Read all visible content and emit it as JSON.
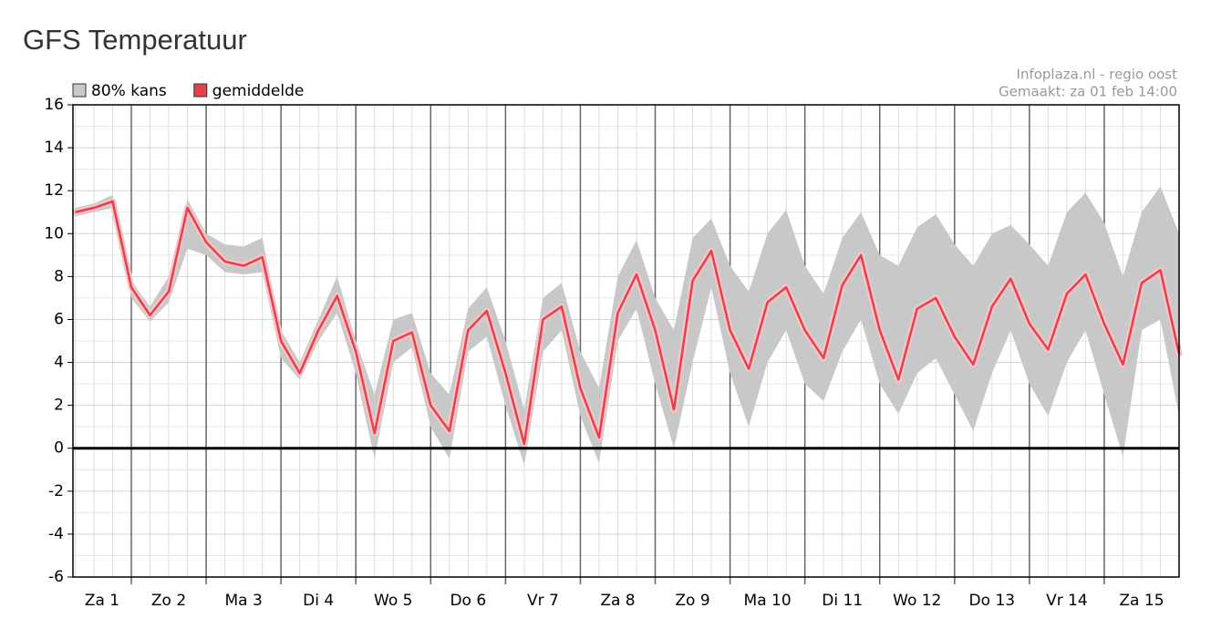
{
  "chart_data": {
    "type": "line",
    "title": "GFS Temperatuur",
    "source": "Infoplaza.nl - regio oost",
    "made": "Gemaakt: za 01 feb 14:00",
    "categories": [
      "Za 1",
      "Zo 2",
      "Ma 3",
      "Di 4",
      "Wo 5",
      "Do 6",
      "Vr 7",
      "Za 8",
      "Zo 9",
      "Ma 10",
      "Di 11",
      "Wo 12",
      "Do 13",
      "Vr 14",
      "Za 15"
    ],
    "x": [
      0.25,
      0.5,
      0.75,
      1,
      1.25,
      1.5,
      1.75,
      2,
      2.25,
      2.5,
      2.75,
      3,
      3.25,
      3.5,
      3.75,
      4,
      4.25,
      4.5,
      4.75,
      5,
      5.25,
      5.5,
      5.75,
      6,
      6.25,
      6.5,
      6.75,
      7,
      7.25,
      7.5,
      7.75,
      8,
      8.25,
      8.5,
      8.75,
      9,
      9.25,
      9.5,
      9.75,
      10,
      10.25,
      10.5,
      10.75,
      11,
      11.25,
      11.5,
      11.75,
      12,
      12.25,
      12.5,
      12.75,
      13,
      13.25,
      13.5,
      13.75,
      14,
      14.25,
      14.5,
      14.75,
      15
    ],
    "xlim": [
      0.22,
      15
    ],
    "ylim": [
      -6,
      16
    ],
    "yticks": [
      -6,
      -4,
      -2,
      0,
      2,
      4,
      6,
      8,
      10,
      12,
      14,
      16
    ],
    "grid": true,
    "zero_line": true,
    "legend": "top-left",
    "series": [
      {
        "name": "80% kans",
        "color": "#c8c8c8",
        "high": [
          11.2,
          11.4,
          11.8,
          7.8,
          6.6,
          8,
          11.6,
          10,
          9.5,
          9.4,
          9.8,
          5.5,
          4,
          6,
          8,
          5,
          2.5,
          6,
          6.3,
          3.5,
          2.5,
          6.5,
          7.5,
          5,
          1.8,
          7,
          7.7,
          4.5,
          2.8,
          8,
          9.7,
          7,
          5.5,
          9.8,
          10.7,
          8.5,
          7.3,
          10,
          11.1,
          8.5,
          7.2,
          9.8,
          11,
          9,
          8.5,
          10.3,
          10.9,
          9.5,
          8.5,
          10,
          10.4,
          9.5,
          8.5,
          11,
          11.9,
          10.5,
          8,
          11,
          12.2,
          10
        ],
        "low": [
          10.8,
          11.0,
          11.2,
          7.0,
          5.9,
          6.8,
          9.3,
          9.0,
          8.2,
          8.1,
          8.2,
          4.2,
          3.2,
          5,
          6.3,
          3.5,
          -0.5,
          4,
          4.7,
          1,
          -0.5,
          4.5,
          5.2,
          2,
          -0.8,
          4.5,
          5.5,
          1.5,
          -0.7,
          5,
          6.5,
          3,
          0,
          4,
          7.5,
          3.5,
          1,
          4,
          5.5,
          3,
          2.2,
          4.5,
          6,
          3,
          1.6,
          3.5,
          4.2,
          2.5,
          0.8,
          3.5,
          5.5,
          3,
          1.5,
          4,
          5.5,
          2.5,
          -0.4,
          5.5,
          6,
          1.5
        ]
      },
      {
        "name": "gemiddelde",
        "color": "#e8404a",
        "values": [
          11.0,
          11.2,
          11.5,
          7.5,
          6.2,
          7.3,
          11.2,
          9.6,
          8.7,
          8.5,
          8.9,
          5.0,
          3.5,
          5.5,
          7.1,
          4.5,
          0.7,
          5.0,
          5.4,
          2.0,
          0.8,
          5.5,
          6.4,
          3.5,
          0.2,
          6.0,
          6.6,
          2.8,
          0.5,
          6.3,
          8.1,
          5.5,
          1.8,
          7.8,
          9.2,
          5.5,
          3.7,
          6.8,
          7.5,
          5.5,
          4.2,
          7.6,
          9.0,
          5.5,
          3.2,
          6.5,
          7.0,
          5.2,
          3.9,
          6.6,
          7.9,
          5.8,
          4.6,
          7.2,
          8.1,
          5.8,
          3.9,
          7.7,
          8.3,
          4.4
        ]
      }
    ]
  }
}
